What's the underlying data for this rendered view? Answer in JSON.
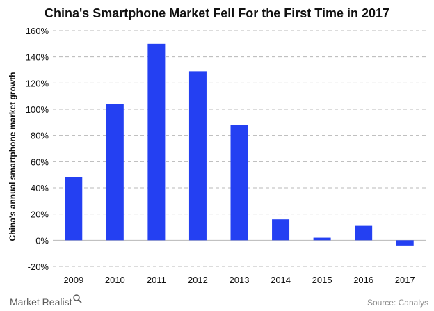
{
  "chart_data": {
    "type": "bar",
    "title": "China's Smartphone Market Fell For the First Time in 2017",
    "xlabel": "",
    "ylabel": "China's annual smartphone market growth",
    "categories": [
      "2009",
      "2010",
      "2011",
      "2012",
      "2013",
      "2014",
      "2015",
      "2016",
      "2017"
    ],
    "values": [
      48,
      104,
      150,
      129,
      88,
      16,
      2,
      11,
      -4
    ],
    "y_ticks": [
      "-20%",
      "0%",
      "20%",
      "40%",
      "60%",
      "80%",
      "100%",
      "120%",
      "140%",
      "160%"
    ],
    "ylim": [
      -20,
      160
    ],
    "y_tick_values": [
      -20,
      0,
      20,
      40,
      60,
      80,
      100,
      120,
      140,
      160
    ],
    "grid": true,
    "bar_color": "#2440f2",
    "source": "Source: Canalys",
    "brand": "Market Realist"
  },
  "colors": {
    "bar": "#2440f2",
    "grid": "#b8b8b8",
    "title": "#111111",
    "source": "#8a8a8a"
  },
  "icons": {
    "brand_mark": "magnifier-icon"
  }
}
